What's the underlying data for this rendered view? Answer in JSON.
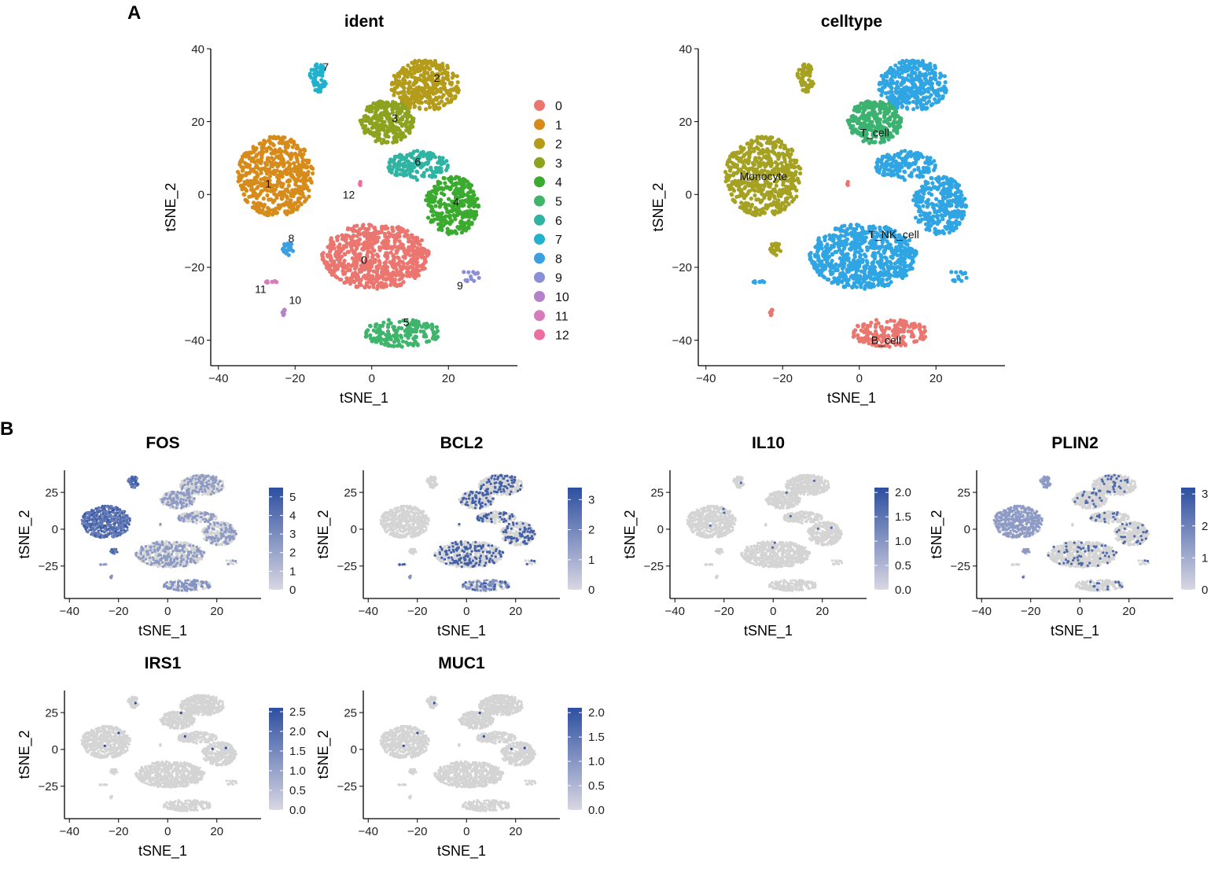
{
  "figure": {
    "panel_a_label": "A",
    "panel_b_label": "B"
  },
  "colors": {
    "gray_cell": "#d4d4d4",
    "low": "#d9d7e3",
    "high": "#2d4fa0",
    "cluster": [
      "#eb766f",
      "#d68b1a",
      "#b49c1a",
      "#8da31f",
      "#3aab2e",
      "#3fb56c",
      "#2fb4a3",
      "#22b1cc",
      "#3c9fe0",
      "#8b8fd6",
      "#b482c8",
      "#d77cba",
      "#ef6ea2"
    ],
    "celltype": {
      "Monocyte": "#a5a122",
      "T_cell": "#3cb270",
      "T_NK_cell": "#30a5e3",
      "B_cell": "#eb766f"
    }
  },
  "chart_data": [
    {
      "id": "ident",
      "type": "scatter",
      "title": "ident",
      "xlabel": "tSNE_1",
      "ylabel": "tSNE_2",
      "xlim": [
        -42,
        38
      ],
      "ylim": [
        -47,
        40
      ],
      "xticks": [
        -40,
        -20,
        0,
        20
      ],
      "yticks": [
        -40,
        -20,
        0,
        20,
        40
      ],
      "legend_position": "right",
      "legend": [
        "0",
        "1",
        "2",
        "3",
        "4",
        "5",
        "6",
        "7",
        "8",
        "9",
        "10",
        "11",
        "12"
      ],
      "cluster_labels": [
        {
          "text": "0",
          "x": -2,
          "y": -18
        },
        {
          "text": "1",
          "x": -27,
          "y": 3
        },
        {
          "text": "2",
          "x": 17,
          "y": 32
        },
        {
          "text": "3",
          "x": 6,
          "y": 21
        },
        {
          "text": "4",
          "x": 22,
          "y": -2
        },
        {
          "text": "5",
          "x": 9,
          "y": -35
        },
        {
          "text": "6",
          "x": 12,
          "y": 9
        },
        {
          "text": "7",
          "x": -12,
          "y": 35
        },
        {
          "text": "8",
          "x": -21,
          "y": -12
        },
        {
          "text": "9",
          "x": 23,
          "y": -25
        },
        {
          "text": "10",
          "x": -20,
          "y": -29
        },
        {
          "text": "11",
          "x": -29,
          "y": -26
        },
        {
          "text": "12",
          "x": -6,
          "y": 0
        }
      ]
    },
    {
      "id": "celltype",
      "type": "scatter",
      "title": "celltype",
      "xlabel": "tSNE_1",
      "ylabel": "tSNE_2",
      "xlim": [
        -42,
        38
      ],
      "ylim": [
        -47,
        40
      ],
      "xticks": [
        -40,
        -20,
        0,
        20
      ],
      "yticks": [
        -40,
        -20,
        0,
        20,
        40
      ],
      "cluster_labels": [
        {
          "text": "Monocyte",
          "x": -25,
          "y": 5
        },
        {
          "text": "T_cell",
          "x": 4,
          "y": 17
        },
        {
          "text": "T_NK_cell",
          "x": 9,
          "y": -11
        },
        {
          "text": "B_cell",
          "x": 7,
          "y": -40
        }
      ]
    },
    {
      "id": "FOS",
      "type": "scatter",
      "title": "FOS",
      "xlabel": "tSNE_1",
      "ylabel": "tSNE_2",
      "xticks": [
        -40,
        -20,
        0,
        20
      ],
      "yticks": [
        25,
        0,
        -25
      ],
      "scale_ticks": [
        "0",
        "1",
        "2",
        "3",
        "4",
        "5"
      ],
      "scale_max": 5.5,
      "expression_pattern": "monocyte-high"
    },
    {
      "id": "BCL2",
      "type": "scatter",
      "title": "BCL2",
      "xlabel": "tSNE_1",
      "ylabel": "tSNE_2",
      "xticks": [
        -40,
        -20,
        0,
        20
      ],
      "yticks": [
        25,
        0,
        -25
      ],
      "scale_ticks": [
        "0",
        "1",
        "2",
        "3"
      ],
      "scale_max": 3.4,
      "expression_pattern": "tcell-scattered"
    },
    {
      "id": "IL10",
      "type": "scatter",
      "title": "IL10",
      "xlabel": "tSNE_1",
      "ylabel": "tSNE_2",
      "xticks": [
        -40,
        -20,
        0,
        20
      ],
      "yticks": [
        25,
        0,
        -25
      ],
      "scale_ticks": [
        "0.0",
        "0.5",
        "1.0",
        "1.5",
        "2.0"
      ],
      "scale_max": 2.1,
      "expression_pattern": "sparse"
    },
    {
      "id": "PLIN2",
      "type": "scatter",
      "title": "PLIN2",
      "xlabel": "tSNE_1",
      "ylabel": "tSNE_2",
      "xticks": [
        -40,
        -20,
        0,
        20
      ],
      "yticks": [
        25,
        0,
        -25
      ],
      "scale_ticks": [
        "0",
        "1",
        "2",
        "3"
      ],
      "scale_max": 3.2,
      "expression_pattern": "monocyte-mild"
    },
    {
      "id": "IRS1",
      "type": "scatter",
      "title": "IRS1",
      "xlabel": "tSNE_1",
      "ylabel": "tSNE_2",
      "xticks": [
        -40,
        -20,
        0,
        20
      ],
      "yticks": [
        25,
        0,
        -25
      ],
      "scale_ticks": [
        "0.0",
        "0.5",
        "1.0",
        "1.5",
        "2.0",
        "2.5"
      ],
      "scale_max": 2.6,
      "expression_pattern": "very-sparse"
    },
    {
      "id": "MUC1",
      "type": "scatter",
      "title": "MUC1",
      "xlabel": "tSNE_1",
      "ylabel": "tSNE_2",
      "xticks": [
        -40,
        -20,
        0,
        20
      ],
      "yticks": [
        25,
        0,
        -25
      ],
      "scale_ticks": [
        "0.0",
        "0.5",
        "1.0",
        "1.5",
        "2.0"
      ],
      "scale_max": 2.1,
      "expression_pattern": "very-sparse"
    }
  ]
}
